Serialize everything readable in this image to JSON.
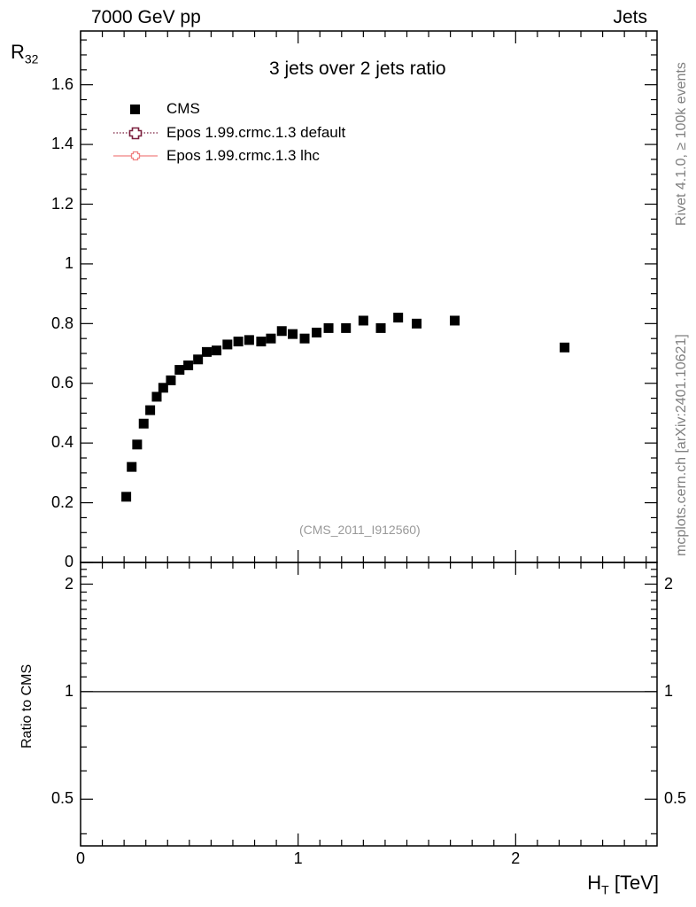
{
  "header": {
    "energy": "7000 GeV pp",
    "category": "Jets"
  },
  "side_labels": {
    "rivet": "Rivet 4.1.0, ≥ 100k events",
    "mcplots": "mcplots.cern.ch [arXiv:2401.10621]"
  },
  "chart_data": {
    "type": "scatter",
    "title": "3 jets over 2 jets ratio",
    "analysis_id": "(CMS_2011_I912560)",
    "xlabel": "H",
    "xlabel_sub": "T",
    "xlabel_unit": "[TeV]",
    "ylabel": "R",
    "ylabel_sub": "32",
    "xlim": [
      0,
      2.65
    ],
    "ylim": [
      0,
      1.78
    ],
    "x_ticks": [
      0,
      1,
      2
    ],
    "x_tick_labels": [
      "0",
      "1",
      "2"
    ],
    "y_ticks": [
      0,
      0.2,
      0.4,
      0.6,
      0.8,
      1.0,
      1.2,
      1.4,
      1.6
    ],
    "y_tick_labels": [
      "0",
      "0.2",
      "0.4",
      "0.6",
      "0.8",
      "1",
      "1.2",
      "1.4",
      "1.6"
    ],
    "legend": [
      {
        "name": "CMS",
        "style": "square",
        "color": "#000000"
      },
      {
        "name": "Epos 1.99.crmc.1.3 default",
        "style": "dotted-cross",
        "color": "#7a1f3d"
      },
      {
        "name": "Epos 1.99.crmc.1.3 lhc",
        "style": "solid-cross",
        "color": "#f08080"
      }
    ],
    "series": [
      {
        "name": "CMS",
        "x": [
          0.21,
          0.235,
          0.26,
          0.29,
          0.32,
          0.35,
          0.38,
          0.415,
          0.455,
          0.495,
          0.54,
          0.58,
          0.625,
          0.675,
          0.725,
          0.775,
          0.83,
          0.875,
          0.925,
          0.975,
          1.03,
          1.085,
          1.14,
          1.22,
          1.3,
          1.38,
          1.46,
          1.545,
          1.72,
          2.225
        ],
        "y": [
          0.22,
          0.32,
          0.395,
          0.465,
          0.51,
          0.555,
          0.585,
          0.61,
          0.645,
          0.66,
          0.68,
          0.705,
          0.71,
          0.73,
          0.74,
          0.745,
          0.74,
          0.75,
          0.775,
          0.765,
          0.75,
          0.77,
          0.785,
          0.785,
          0.81,
          0.785,
          0.82,
          0.8,
          0.81,
          0.72
        ]
      }
    ],
    "ratio": {
      "ylabel": "Ratio to CMS",
      "ylim": [
        0.37,
        2.3
      ],
      "y_ticks": [
        0.5,
        1,
        2
      ],
      "y_tick_labels": [
        "0.5",
        "1",
        "2"
      ],
      "reference": 1
    }
  }
}
